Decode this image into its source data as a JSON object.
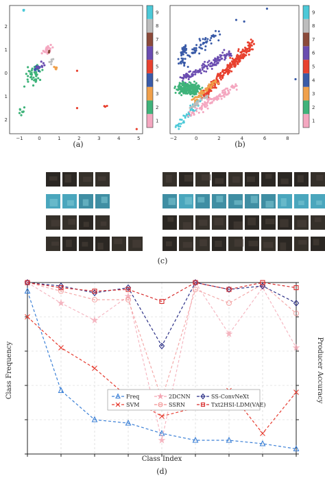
{
  "captions": {
    "a": "(a)",
    "b": "(b)",
    "c": "(c)",
    "d": "(d)"
  },
  "scatter_a": {
    "x_ticks": [
      "−1",
      "0",
      "1",
      "2",
      "3",
      "4",
      "5"
    ],
    "y_ticks": [
      "2",
      "1",
      "0",
      "1",
      "2"
    ],
    "colorbar_ticks": [
      "1",
      "2",
      "3",
      "4",
      "5",
      "6",
      "7",
      "8",
      "9"
    ]
  },
  "scatter_b": {
    "x_ticks": [
      "−2",
      "0",
      "2",
      "4",
      "6",
      "8"
    ],
    "colorbar_ticks": [
      "1",
      "2",
      "3",
      "4",
      "5",
      "6",
      "7",
      "8",
      "9"
    ]
  },
  "colors": {
    "class_1": "#f4a7c0",
    "class_2": "#3fb37a",
    "class_3": "#f0a04b",
    "class_4": "#3a5ba8",
    "class_5": "#e8412f",
    "class_6": "#6a4cb0",
    "class_7": "#8b4a3a",
    "class_8": "#bdbdbd",
    "class_9": "#4cc9d8"
  },
  "chart_data": {
    "type": "line",
    "xlabel": "Class Index",
    "ylabel": "Class Frequency",
    "ylabel_right": "Producer Accuracy",
    "x": [
      1,
      2,
      3,
      4,
      5,
      6,
      7,
      8,
      9
    ],
    "series": [
      {
        "name": "Freq",
        "color": "#3a7fd6",
        "marker": "triangle",
        "values": [
          0.95,
          0.37,
          0.2,
          0.18,
          0.12,
          0.08,
          0.08,
          0.06,
          0.03
        ]
      },
      {
        "name": "SVM",
        "color": "#e63a2e",
        "marker": "x",
        "values": [
          0.8,
          0.62,
          0.5,
          0.33,
          0.22,
          0.27,
          0.37,
          0.12,
          0.36
        ]
      },
      {
        "name": "2DCNN",
        "color": "#f3a5b2",
        "marker": "star",
        "values": [
          1.0,
          0.88,
          0.78,
          0.92,
          0.08,
          1.0,
          0.7,
          0.97,
          0.62
        ]
      },
      {
        "name": "SSRN",
        "color": "#f08c8c",
        "marker": "circle",
        "values": [
          1.0,
          0.95,
          0.9,
          0.9,
          0.32,
          0.96,
          0.88,
          0.99,
          0.82
        ]
      },
      {
        "name": "SS-ConvNeXt",
        "color": "#2b2f86",
        "marker": "diamond",
        "values": [
          1.0,
          0.98,
          0.94,
          0.97,
          0.63,
          1.0,
          0.96,
          0.98,
          0.88
        ]
      },
      {
        "name": "Txt2HSI-LDM(VAE)",
        "color": "#d62a2a",
        "marker": "square",
        "values": [
          1.0,
          0.97,
          0.95,
          0.96,
          0.89,
          1.0,
          0.96,
          1.0,
          0.97
        ]
      }
    ],
    "grid": true,
    "legend": "center-right"
  }
}
